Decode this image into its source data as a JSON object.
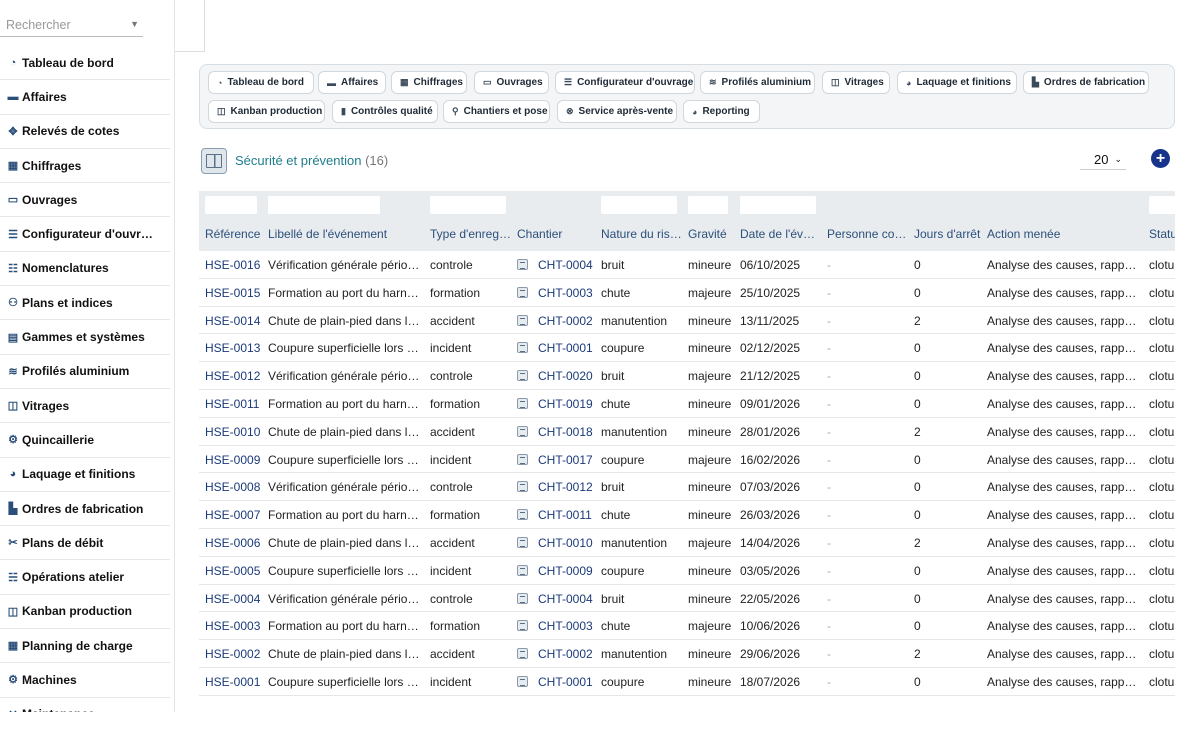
{
  "sidebar": {
    "search_placeholder": "Rechercher",
    "items": [
      {
        "label": "Tableau de bord",
        "icon": "dashboard-icon",
        "glyph": "◔"
      },
      {
        "label": "Affaires",
        "icon": "briefcase-icon",
        "glyph": "▬"
      },
      {
        "label": "Relevés de cotes",
        "icon": "move-icon",
        "glyph": "✥"
      },
      {
        "label": "Chiffrages",
        "icon": "calculator-icon",
        "glyph": "▦"
      },
      {
        "label": "Ouvrages",
        "icon": "window-icon",
        "glyph": "▭"
      },
      {
        "label": "Configurateur d'ouvr…",
        "icon": "sliders-icon",
        "glyph": "☰"
      },
      {
        "label": "Nomenclatures",
        "icon": "list-icon",
        "glyph": "☷"
      },
      {
        "label": "Plans et indices",
        "icon": "sitemap-icon",
        "glyph": "⚇"
      },
      {
        "label": "Gammes et systèmes",
        "icon": "grid-icon",
        "glyph": "▤"
      },
      {
        "label": "Profilés aluminium",
        "icon": "layers-icon",
        "glyph": "≋"
      },
      {
        "label": "Vitrages",
        "icon": "glazing-icon",
        "glyph": "◫"
      },
      {
        "label": "Quincaillerie",
        "icon": "gears-icon",
        "glyph": "⚙"
      },
      {
        "label": "Laquage et finitions",
        "icon": "palette-icon",
        "glyph": "◕"
      },
      {
        "label": "Ordres de fabrication",
        "icon": "industry-icon",
        "glyph": "▙"
      },
      {
        "label": "Plans de débit",
        "icon": "scissors-icon",
        "glyph": "✂"
      },
      {
        "label": "Opérations atelier",
        "icon": "checklist-icon",
        "glyph": "☵"
      },
      {
        "label": "Kanban production",
        "icon": "kanban-icon",
        "glyph": "◫"
      },
      {
        "label": "Planning de charge",
        "icon": "calendar-icon",
        "glyph": "▦"
      },
      {
        "label": "Machines",
        "icon": "cogs-icon",
        "glyph": "⚙"
      },
      {
        "label": "Maintenance",
        "icon": "tools-icon",
        "glyph": "✕"
      }
    ]
  },
  "modules": [
    {
      "label": "Tableau de bord",
      "icon": "dashboard-icon",
      "glyph": "◔"
    },
    {
      "label": "Affaires",
      "icon": "briefcase-icon",
      "glyph": "▬"
    },
    {
      "label": "Chiffrages",
      "icon": "calculator-icon",
      "glyph": "▦"
    },
    {
      "label": "Ouvrages",
      "icon": "window-icon",
      "glyph": "▭"
    },
    {
      "label": "Configurateur d'ouvrage",
      "icon": "sliders-icon",
      "glyph": "☰"
    },
    {
      "label": "Profilés aluminium",
      "icon": "layers-icon",
      "glyph": "≋"
    },
    {
      "label": "Vitrages",
      "icon": "glazing-icon",
      "glyph": "◫"
    },
    {
      "label": "Laquage et finitions",
      "icon": "palette-icon",
      "glyph": "◕"
    },
    {
      "label": "Ordres de fabrication",
      "icon": "industry-icon",
      "glyph": "▙"
    },
    {
      "label": "Kanban production",
      "icon": "kanban-icon",
      "glyph": "◫"
    },
    {
      "label": "Contrôles qualité",
      "icon": "clipboard-icon",
      "glyph": "▮"
    },
    {
      "label": "Chantiers et pose",
      "icon": "map-marker-icon",
      "glyph": "⚲"
    },
    {
      "label": "Service après-vente",
      "icon": "support-icon",
      "glyph": "⊗"
    },
    {
      "label": "Reporting",
      "icon": "pie-chart-icon",
      "glyph": "◕"
    }
  ],
  "list": {
    "title": "Sécurité et prévention",
    "count": "(16)",
    "page_size": "20",
    "add_label": "+"
  },
  "table": {
    "columns": [
      "Référence",
      "Libellé de l'événement",
      "Type d'enreg…",
      "Chantier",
      "Nature du ris…",
      "Gravité",
      "Date de l'év…",
      "Personne co…",
      "Jours d'arrêt",
      "Action menée",
      "Statut"
    ],
    "rows": [
      [
        "HSE-0016",
        "Vérification générale périodi…",
        "controle",
        "CHT-0004",
        "bruit",
        "mineure",
        "06/10/2025",
        "-",
        "0",
        "Analyse des causes, rappel …",
        "cloturé"
      ],
      [
        "HSE-0015",
        "Formation au port du harnai…",
        "formation",
        "CHT-0003",
        "chute",
        "majeure",
        "25/10/2025",
        "-",
        "0",
        "Analyse des causes, rappel …",
        "cloturé"
      ],
      [
        "HSE-0014",
        "Chute de plain-pied dans la …",
        "accident",
        "CHT-0002",
        "manutention",
        "mineure",
        "13/11/2025",
        "-",
        "2",
        "Analyse des causes, rappel …",
        "cloturé"
      ],
      [
        "HSE-0013",
        "Coupure superficielle lors d…",
        "incident",
        "CHT-0001",
        "coupure",
        "mineure",
        "02/12/2025",
        "-",
        "0",
        "Analyse des causes, rappel …",
        "cloturé"
      ],
      [
        "HSE-0012",
        "Vérification générale périodi…",
        "controle",
        "CHT-0020",
        "bruit",
        "majeure",
        "21/12/2025",
        "-",
        "0",
        "Analyse des causes, rappel …",
        "cloturé"
      ],
      [
        "HSE-0011",
        "Formation au port du harnai…",
        "formation",
        "CHT-0019",
        "chute",
        "mineure",
        "09/01/2026",
        "-",
        "0",
        "Analyse des causes, rappel …",
        "cloturé"
      ],
      [
        "HSE-0010",
        "Chute de plain-pied dans la …",
        "accident",
        "CHT-0018",
        "manutention",
        "mineure",
        "28/01/2026",
        "-",
        "2",
        "Analyse des causes, rappel …",
        "cloturé"
      ],
      [
        "HSE-0009",
        "Coupure superficielle lors d…",
        "incident",
        "CHT-0017",
        "coupure",
        "majeure",
        "16/02/2026",
        "-",
        "0",
        "Analyse des causes, rappel …",
        "cloturé"
      ],
      [
        "HSE-0008",
        "Vérification générale périodi…",
        "controle",
        "CHT-0012",
        "bruit",
        "mineure",
        "07/03/2026",
        "-",
        "0",
        "Analyse des causes, rappel …",
        "cloturé"
      ],
      [
        "HSE-0007",
        "Formation au port du harnai…",
        "formation",
        "CHT-0011",
        "chute",
        "mineure",
        "26/03/2026",
        "-",
        "0",
        "Analyse des causes, rappel …",
        "cloturé"
      ],
      [
        "HSE-0006",
        "Chute de plain-pied dans la …",
        "accident",
        "CHT-0010",
        "manutention",
        "majeure",
        "14/04/2026",
        "-",
        "2",
        "Analyse des causes, rappel …",
        "cloturé"
      ],
      [
        "HSE-0005",
        "Coupure superficielle lors d…",
        "incident",
        "CHT-0009",
        "coupure",
        "mineure",
        "03/05/2026",
        "-",
        "0",
        "Analyse des causes, rappel …",
        "cloturé"
      ],
      [
        "HSE-0004",
        "Vérification générale périodi…",
        "controle",
        "CHT-0004",
        "bruit",
        "mineure",
        "22/05/2026",
        "-",
        "0",
        "Analyse des causes, rappel …",
        "cloturé"
      ],
      [
        "HSE-0003",
        "Formation au port du harnai…",
        "formation",
        "CHT-0003",
        "chute",
        "majeure",
        "10/06/2026",
        "-",
        "0",
        "Analyse des causes, rappel …",
        "cloturé"
      ],
      [
        "HSE-0002",
        "Chute de plain-pied dans la …",
        "accident",
        "CHT-0002",
        "manutention",
        "mineure",
        "29/06/2026",
        "-",
        "2",
        "Analyse des causes, rappel …",
        "cloturé"
      ],
      [
        "HSE-0001",
        "Coupure superficielle lors d…",
        "incident",
        "CHT-0001",
        "coupure",
        "mineure",
        "18/07/2026",
        "-",
        "0",
        "Analyse des causes, rappel …",
        "cloturé"
      ]
    ]
  },
  "colors": {
    "accent": "#1f7d8c",
    "link": "#1b3a7a",
    "header_text": "#2b4f7a",
    "add_button": "#17338a"
  }
}
